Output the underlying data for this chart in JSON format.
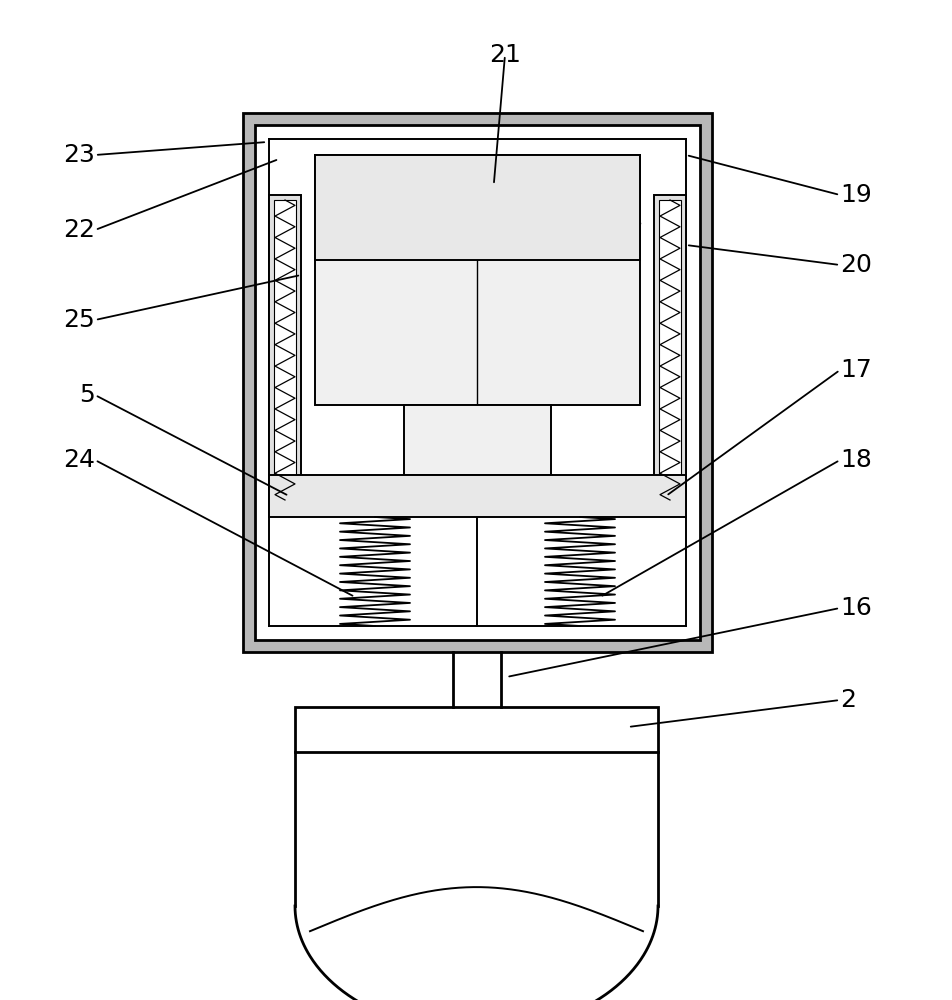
{
  "bg_color": "#ffffff",
  "line_color": "#000000",
  "label_fontsize": 18,
  "arrow_color": "#000000",
  "lw_thick": 2.0,
  "lw_med": 1.4,
  "lw_thin": 1.0
}
